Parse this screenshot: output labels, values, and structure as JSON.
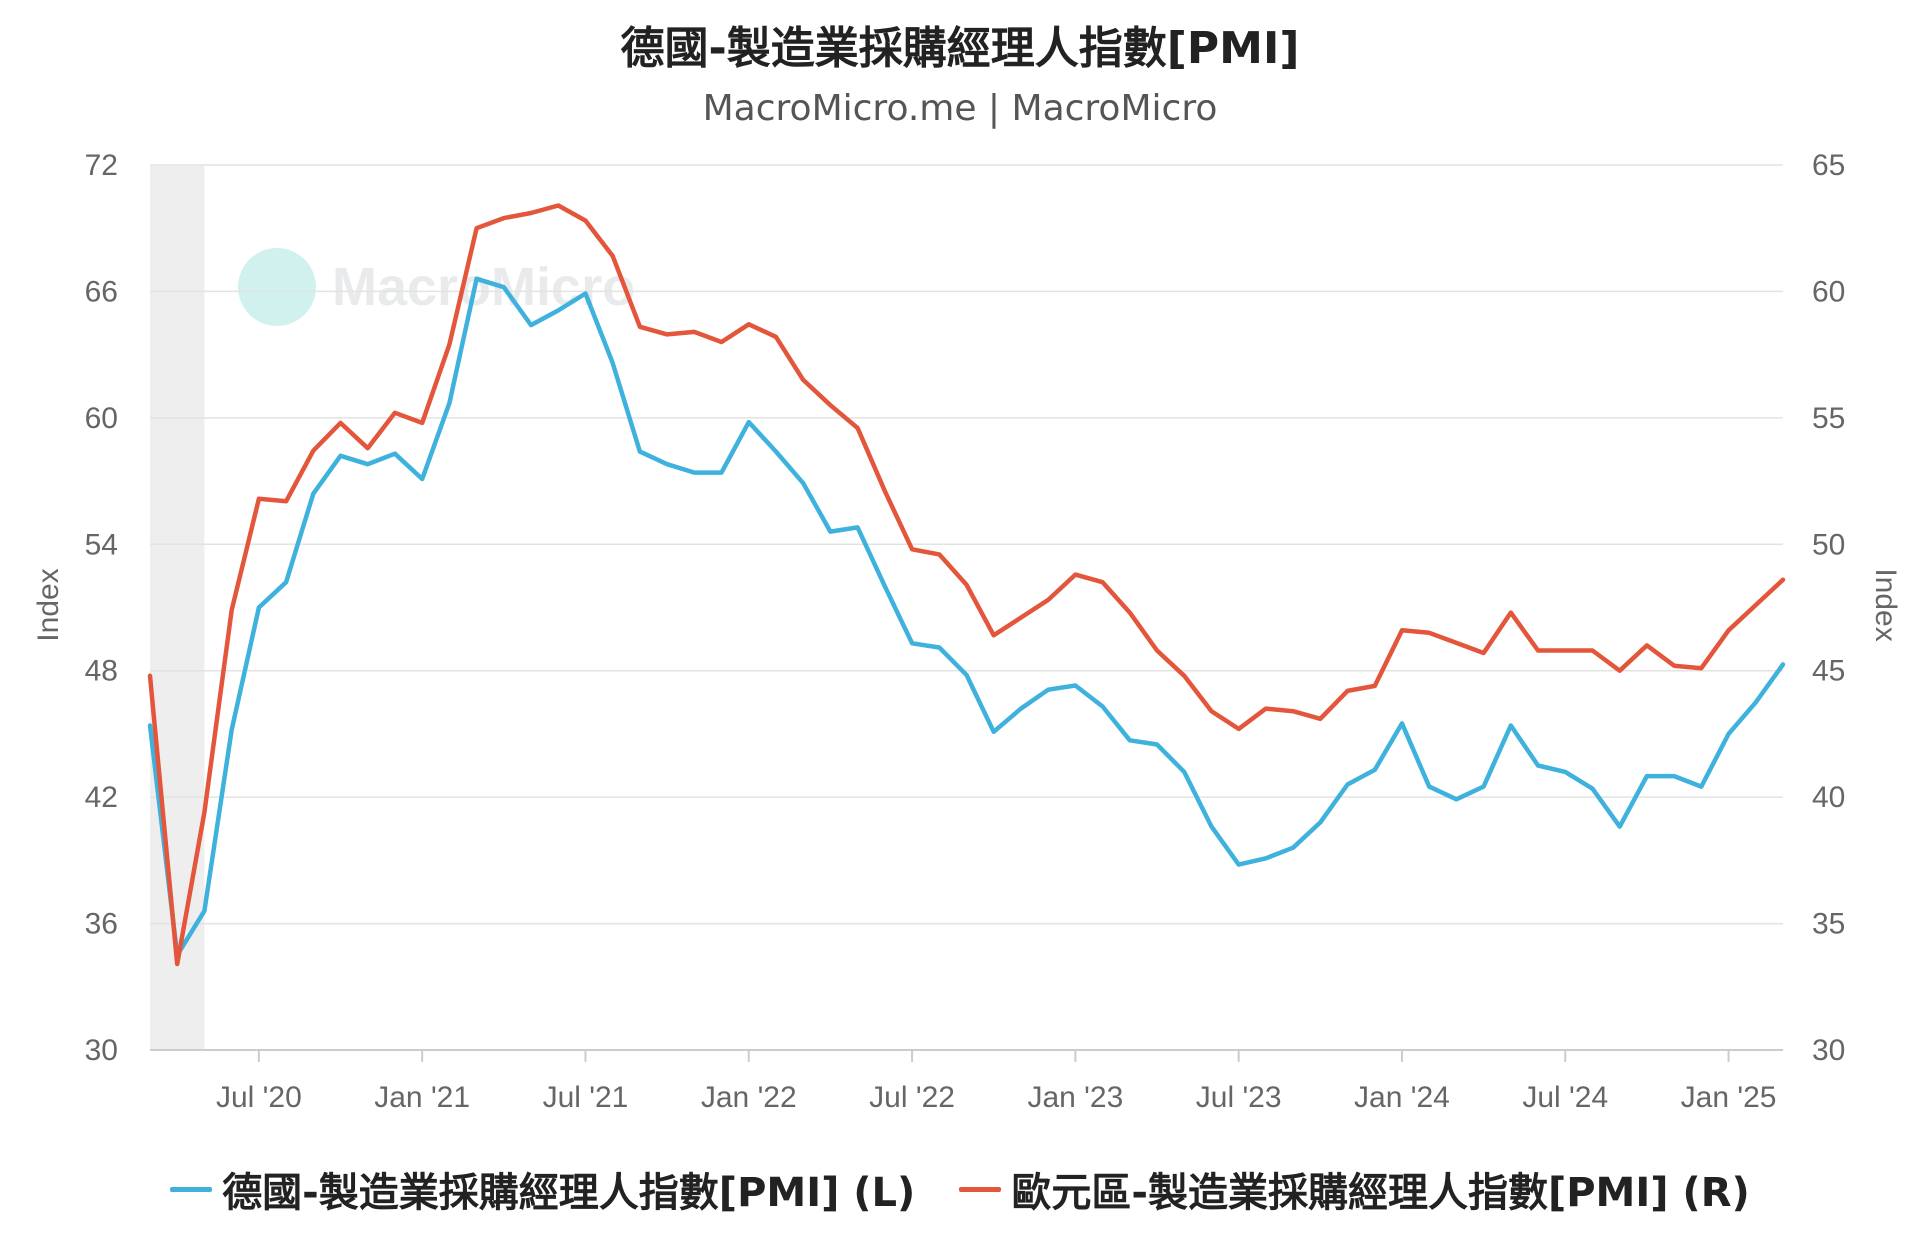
{
  "title": "德國-製造業採購經理人指數[PMI]",
  "subtitle": "MacroMicro.me | MacroMicro",
  "watermark": "MacroMicro",
  "chart_data": {
    "type": "line",
    "y_left": {
      "label": "Index",
      "range": [
        30,
        72
      ],
      "ticks": [
        30,
        36,
        42,
        48,
        54,
        60,
        66,
        72
      ]
    },
    "y_right": {
      "label": "Index",
      "range": [
        30,
        65
      ],
      "ticks": [
        30,
        35,
        40,
        45,
        50,
        55,
        60,
        65
      ]
    },
    "x_tick_labels": [
      "Jul '20",
      "Jan '21",
      "Jul '21",
      "Jan '22",
      "Jul '22",
      "Jan '23",
      "Jul '23",
      "Jan '24",
      "Jul '24",
      "Jan '25"
    ],
    "x_tick_months": [
      "2020-07",
      "2021-01",
      "2021-07",
      "2022-01",
      "2022-07",
      "2023-01",
      "2023-07",
      "2024-01",
      "2024-07",
      "2025-01"
    ],
    "x_range": [
      "2020-03",
      "2025-03"
    ],
    "shaded_region": [
      "2020-03",
      "2020-05"
    ],
    "months": [
      "2020-03",
      "2020-04",
      "2020-05",
      "2020-06",
      "2020-07",
      "2020-08",
      "2020-09",
      "2020-10",
      "2020-11",
      "2020-12",
      "2021-01",
      "2021-02",
      "2021-03",
      "2021-04",
      "2021-05",
      "2021-06",
      "2021-07",
      "2021-08",
      "2021-09",
      "2021-10",
      "2021-11",
      "2021-12",
      "2022-01",
      "2022-02",
      "2022-03",
      "2022-04",
      "2022-05",
      "2022-06",
      "2022-07",
      "2022-08",
      "2022-09",
      "2022-10",
      "2022-11",
      "2022-12",
      "2023-01",
      "2023-02",
      "2023-03",
      "2023-04",
      "2023-05",
      "2023-06",
      "2023-07",
      "2023-08",
      "2023-09",
      "2023-10",
      "2023-11",
      "2023-12",
      "2024-01",
      "2024-02",
      "2024-03",
      "2024-04",
      "2024-05",
      "2024-06",
      "2024-07",
      "2024-08",
      "2024-09",
      "2024-10",
      "2024-11",
      "2024-12",
      "2025-01",
      "2025-02",
      "2025-03"
    ],
    "grid": true,
    "legend_position": "bottom",
    "series": [
      {
        "name": "德國-製造業採購經理人指數[PMI] (L)",
        "axis": "left",
        "color": "#3eb1dd",
        "values": [
          45.4,
          34.5,
          36.6,
          45.2,
          51.0,
          52.2,
          56.4,
          58.2,
          57.8,
          58.3,
          57.1,
          60.7,
          66.6,
          66.2,
          64.4,
          65.1,
          65.9,
          62.6,
          58.4,
          57.8,
          57.4,
          57.4,
          59.8,
          58.4,
          56.9,
          54.6,
          54.8,
          52.0,
          49.3,
          49.1,
          47.8,
          45.1,
          46.2,
          47.1,
          47.3,
          46.3,
          44.7,
          44.5,
          43.2,
          40.6,
          38.8,
          39.1,
          39.6,
          40.8,
          42.6,
          43.3,
          45.5,
          42.5,
          41.9,
          42.5,
          45.4,
          43.5,
          43.2,
          42.4,
          40.6,
          43.0,
          43.0,
          42.5,
          45.0,
          46.5,
          48.3
        ]
      },
      {
        "name": "歐元區-製造業採購經理人指數[PMI] (R)",
        "axis": "right",
        "color": "#e4563c",
        "values": [
          44.8,
          33.4,
          39.4,
          47.4,
          51.8,
          51.7,
          53.7,
          54.8,
          53.8,
          55.2,
          54.8,
          57.9,
          62.5,
          62.9,
          63.1,
          63.4,
          62.8,
          61.4,
          58.6,
          58.3,
          58.4,
          58.0,
          58.7,
          58.2,
          56.5,
          55.5,
          54.6,
          52.1,
          49.8,
          49.6,
          48.4,
          46.4,
          47.1,
          47.8,
          48.8,
          48.5,
          47.3,
          45.8,
          44.8,
          43.4,
          42.7,
          43.5,
          43.4,
          43.1,
          44.2,
          44.4,
          46.6,
          46.5,
          46.1,
          45.7,
          47.3,
          45.8,
          45.8,
          45.8,
          45.0,
          46.0,
          45.2,
          45.1,
          46.6,
          47.6,
          48.6
        ]
      }
    ]
  }
}
